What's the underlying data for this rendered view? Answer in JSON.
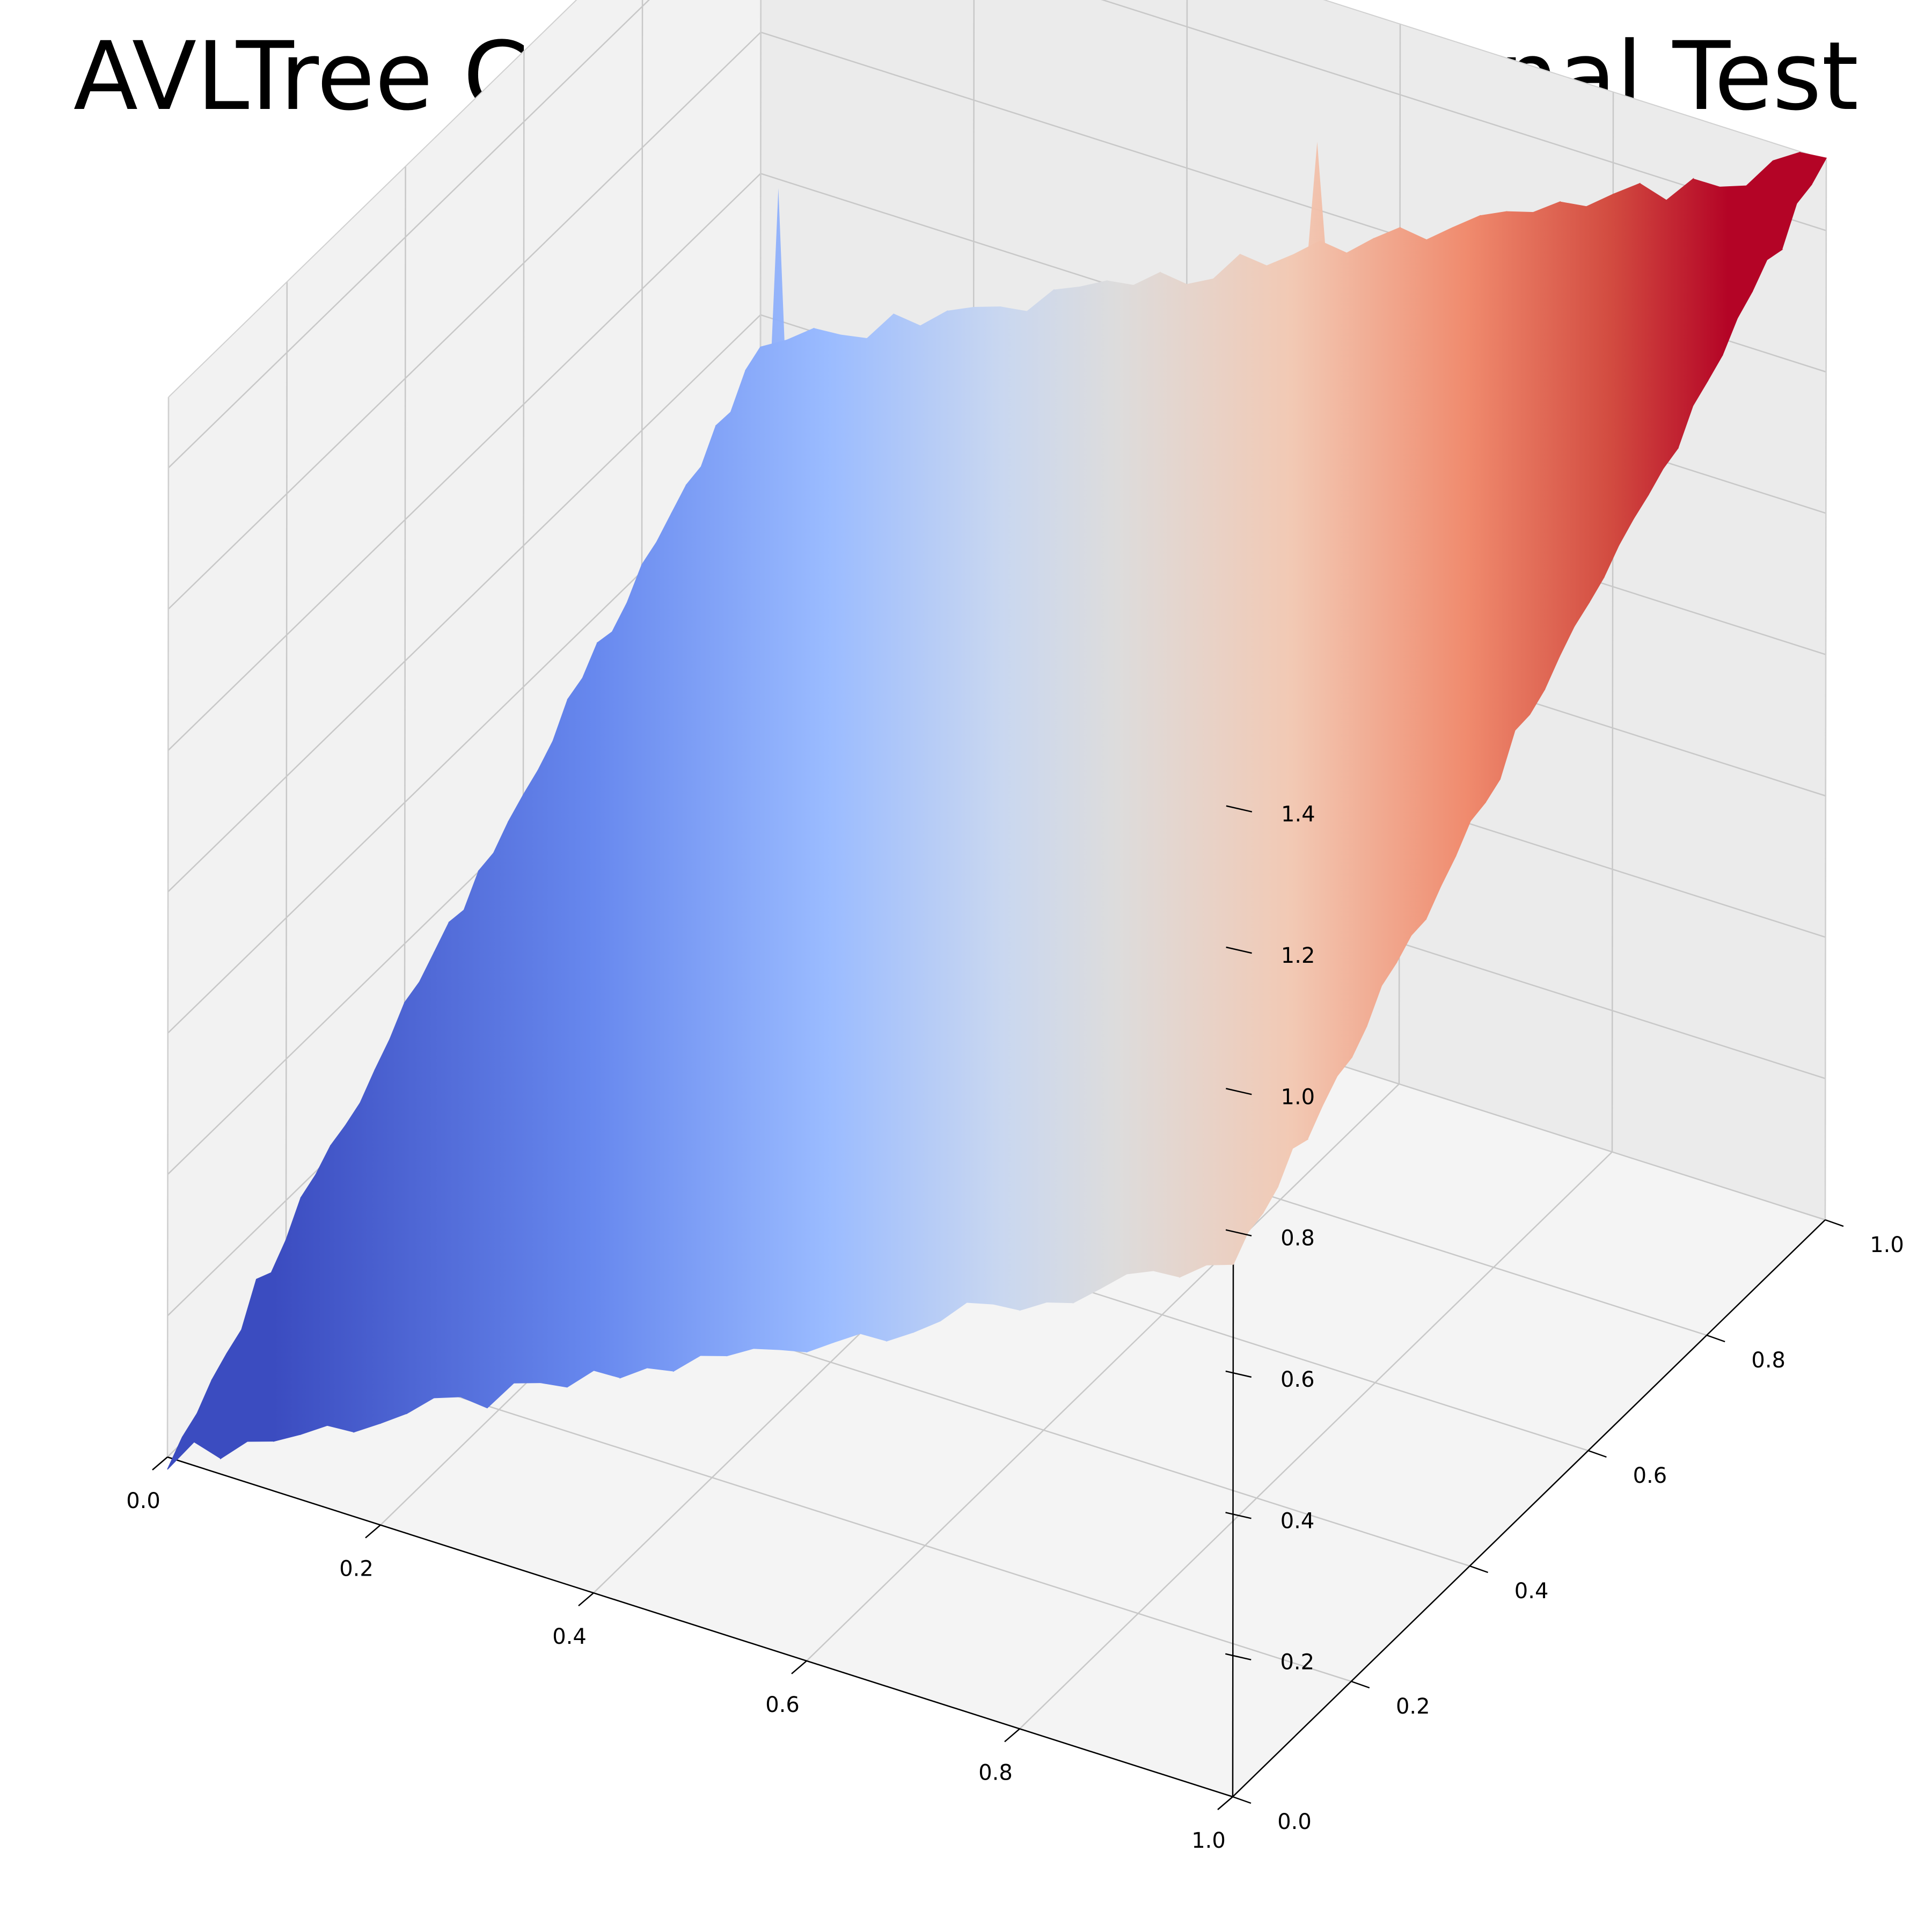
{
  "chart_data": {
    "type": "surface",
    "title": "AVLTree Combinatorial Functional Test",
    "xlabel": "",
    "ylabel": "",
    "zlabel": "",
    "xlim": [
      0.0,
      1.0
    ],
    "ylim": [
      0.0,
      1.0
    ],
    "zlim": [
      0.0,
      1.5
    ],
    "x_ticks": [
      "0.0",
      "0.2",
      "0.4",
      "0.6",
      "0.8",
      "1.0"
    ],
    "y_ticks": [
      "0.0",
      "0.2",
      "0.4",
      "0.6",
      "0.8",
      "1.0"
    ],
    "z_ticks": [
      "0.2",
      "0.4",
      "0.6",
      "0.8",
      "1.0",
      "1.2",
      "1.4"
    ],
    "grid": true,
    "colormap": "coolwarm",
    "surface_function": "z = 0.75 * (x + y) + noise",
    "corner_values": [
      {
        "x": 0.0,
        "y": 0.0,
        "z": 0.0
      },
      {
        "x": 1.0,
        "y": 0.0,
        "z": 0.75
      },
      {
        "x": 0.0,
        "y": 1.0,
        "z": 0.75
      },
      {
        "x": 1.0,
        "y": 1.0,
        "z": 1.5
      }
    ],
    "spikes": [
      {
        "x": 0.1,
        "y": 0.85,
        "z": 1.15
      },
      {
        "x": 0.3,
        "y": 0.75,
        "z": 1.05
      },
      {
        "x": 0.55,
        "y": 0.95,
        "z": 1.35
      }
    ]
  },
  "colors": {
    "pane_left": "#f2f2f2",
    "pane_right": "#ebebeb",
    "pane_floor": "#f4f4f4",
    "grid": "#c8c8c8",
    "axis": "#000000",
    "cmap_low": "#3b4cc0",
    "cmap_mid": "#dddddd",
    "cmap_high": "#b40426"
  }
}
